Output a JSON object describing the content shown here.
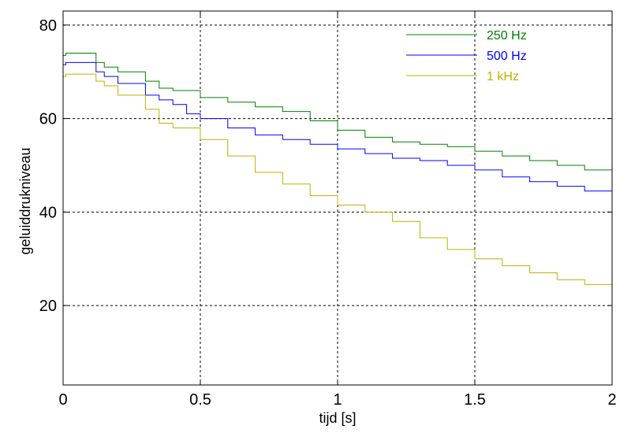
{
  "chart_data": {
    "type": "line",
    "title": "",
    "xlabel": "tijd  [s]",
    "ylabel": "geluiddrukniveau",
    "xlim": [
      0,
      2
    ],
    "ylim": [
      3,
      83
    ],
    "xticks": [
      0,
      0.5,
      1,
      1.5,
      2
    ],
    "xtick_labels": [
      "0",
      "0.5",
      "1",
      "1.5",
      "2"
    ],
    "yticks": [
      20,
      40,
      60,
      80
    ],
    "ytick_labels": [
      "20",
      "40",
      "60",
      "80"
    ],
    "grid": true,
    "legend_position": "top-right",
    "series": [
      {
        "name": "250 Hz",
        "color": "#008000",
        "x": [
          0,
          0.01,
          0.11,
          0.12,
          0.15,
          0.2,
          0.3,
          0.35,
          0.4,
          0.5,
          0.6,
          0.7,
          0.8,
          0.9,
          1.0,
          1.1,
          1.2,
          1.3,
          1.4,
          1.5,
          1.6,
          1.7,
          1.8,
          1.9,
          2.0
        ],
        "y": [
          73.5,
          74,
          74,
          72,
          71,
          70,
          68,
          66.5,
          66,
          64.5,
          63.5,
          62.5,
          61.5,
          59.5,
          57.5,
          56,
          55,
          54.5,
          54,
          53,
          52,
          51,
          50,
          49,
          48
        ]
      },
      {
        "name": "500 Hz",
        "color": "#0000ff",
        "x": [
          0,
          0.01,
          0.11,
          0.12,
          0.15,
          0.2,
          0.3,
          0.35,
          0.4,
          0.45,
          0.5,
          0.6,
          0.7,
          0.8,
          0.9,
          1.0,
          1.1,
          1.2,
          1.3,
          1.4,
          1.5,
          1.6,
          1.7,
          1.8,
          1.9,
          2.0
        ],
        "y": [
          71.5,
          72,
          72,
          70,
          69,
          67.5,
          65,
          64,
          63,
          61,
          60,
          58,
          56.5,
          55.5,
          54.5,
          53.5,
          52.5,
          51.5,
          51,
          50,
          49,
          47.5,
          46.5,
          45.5,
          44.5,
          43.5
        ]
      },
      {
        "name": "1 kHz",
        "color": "#c0b000",
        "x": [
          0,
          0.01,
          0.11,
          0.12,
          0.15,
          0.2,
          0.3,
          0.35,
          0.4,
          0.5,
          0.6,
          0.7,
          0.8,
          0.9,
          1.0,
          1.1,
          1.2,
          1.3,
          1.4,
          1.5,
          1.6,
          1.7,
          1.8,
          1.9,
          2.0
        ],
        "y": [
          69,
          69.5,
          69.5,
          68,
          67,
          65,
          62,
          59,
          58,
          55.5,
          52,
          48.5,
          46,
          43.5,
          41.5,
          40,
          38,
          34.5,
          32,
          30,
          28.5,
          27,
          25.5,
          24.5,
          23.5
        ]
      }
    ]
  }
}
